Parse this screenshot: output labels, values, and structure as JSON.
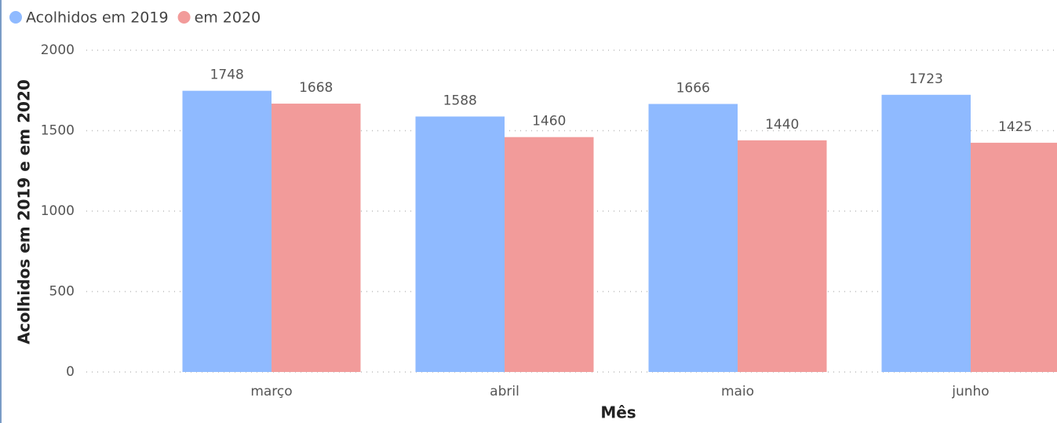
{
  "chart_data": {
    "type": "bar",
    "categories": [
      "março",
      "abril",
      "maio",
      "junho"
    ],
    "series": [
      {
        "name": "Acolhidos em 2019",
        "color": "#8fbaff",
        "values": [
          1748,
          1588,
          1666,
          1723
        ]
      },
      {
        "name": "em 2020",
        "color": "#f29b9a",
        "values": [
          1668,
          1460,
          1440,
          1425
        ]
      }
    ],
    "x_label": "Mês",
    "y_label": "Acolhidos em 2019 e em 2020",
    "ylim": [
      0,
      2000
    ],
    "yticks": [
      0,
      500,
      1000,
      1500,
      2000
    ],
    "grid": true,
    "legend": "top-left",
    "data_labels": true
  }
}
